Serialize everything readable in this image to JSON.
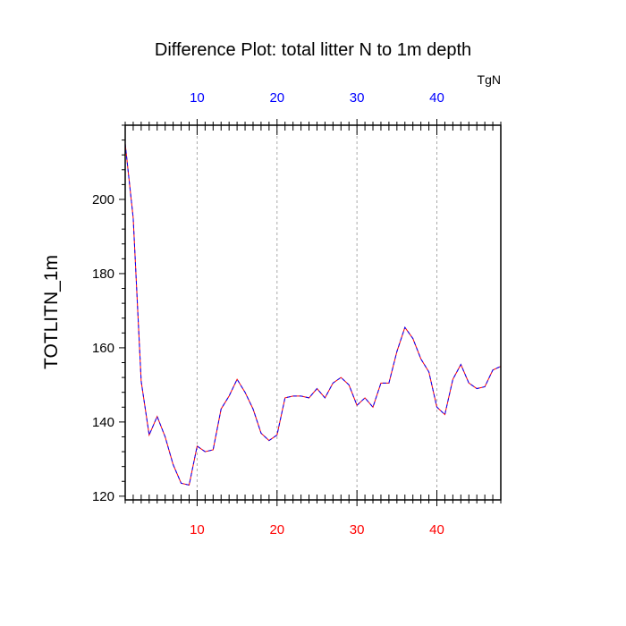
{
  "chart_data": {
    "type": "line",
    "title": "Difference Plot: total litter N to 1m depth",
    "ylabel": "TOTLITN_1m",
    "xlabel": "",
    "units": "TgN",
    "xlim": [
      1,
      48
    ],
    "ylim": [
      119,
      220
    ],
    "x_ticks": [
      10,
      20,
      30,
      40
    ],
    "y_ticks": [
      120,
      140,
      160,
      180,
      200
    ],
    "bottom_tick_color": "#ff0000",
    "top_tick_color": "#0000ff",
    "grid": "vertical dashed at major x ticks",
    "x": [
      1,
      2,
      3,
      4,
      5,
      6,
      7,
      8,
      9,
      10,
      11,
      12,
      13,
      14,
      15,
      16,
      17,
      18,
      19,
      20,
      21,
      22,
      23,
      24,
      25,
      26,
      27,
      28,
      29,
      30,
      31,
      32,
      33,
      34,
      35,
      36,
      37,
      38,
      39,
      40,
      41,
      42,
      43,
      44,
      45,
      46,
      47,
      48
    ],
    "series": [
      {
        "name": "",
        "color": "#ff0000",
        "values": [
          215,
          195,
          151,
          136.5,
          141.5,
          136,
          128.5,
          123.5,
          123,
          133.5,
          132,
          132.5,
          143.5,
          147,
          151.5,
          148,
          143.5,
          137,
          135,
          136.5,
          146.5,
          147,
          147,
          146.5,
          149,
          146.5,
          150.5,
          152,
          150,
          144.5,
          146.5,
          144,
          150.5,
          150.5,
          159,
          165.5,
          162.5,
          157,
          153.5,
          144,
          142,
          151.5,
          155.5,
          150.5,
          149,
          149.5,
          154,
          155
        ]
      },
      {
        "name": "",
        "color": "#0000ff",
        "values": [
          215,
          195,
          151,
          136.5,
          141.5,
          136,
          128.5,
          123.5,
          123,
          133.5,
          132,
          132.5,
          143.5,
          147,
          151.5,
          148,
          143.5,
          137,
          135,
          136.5,
          146.5,
          147,
          147,
          146.5,
          149,
          146.5,
          150.5,
          152,
          150,
          144.5,
          146.5,
          144,
          150.5,
          150.5,
          159,
          165.5,
          162.5,
          157,
          153.5,
          144,
          142,
          151.5,
          155.5,
          150.5,
          149,
          149.5,
          154,
          155
        ]
      }
    ]
  }
}
